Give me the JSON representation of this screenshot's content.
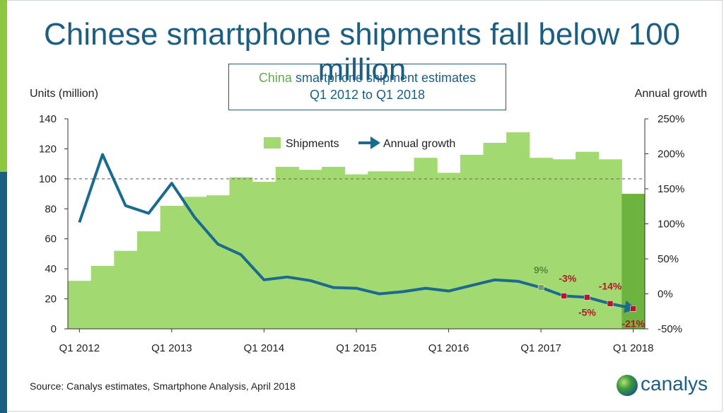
{
  "title": "Chinese smartphone shipments fall below 100 million",
  "subtitle": {
    "highlight": "China",
    "line1_rest": "smartphone shipment estimates",
    "line2": "Q1 2012 to Q1 2018"
  },
  "source": "Source: Canalys estimates, Smartphone Analysis, April 2018",
  "logo": {
    "text": "canalys",
    "icon": "canalys-globe-icon"
  },
  "colors": {
    "bar": "#a3d971",
    "bar_last": "#6db33f",
    "line": "#1b6a8f",
    "negative_label": "#b2182b",
    "positive_label": "#5a8a3a",
    "title": "#1b5e82"
  },
  "chart_data": {
    "type": "bar",
    "categories": [
      "Q1 2012",
      "Q2 2012",
      "Q3 2012",
      "Q4 2012",
      "Q1 2013",
      "Q2 2013",
      "Q3 2013",
      "Q4 2013",
      "Q1 2014",
      "Q2 2014",
      "Q3 2014",
      "Q4 2014",
      "Q1 2015",
      "Q2 2015",
      "Q3 2015",
      "Q4 2015",
      "Q1 2016",
      "Q2 2016",
      "Q3 2016",
      "Q4 2016",
      "Q1 2017",
      "Q2 2017",
      "Q3 2017",
      "Q4 2017",
      "Q1 2018"
    ],
    "x_tick_labels": [
      "Q1 2012",
      "Q1 2013",
      "Q1 2014",
      "Q1 2015",
      "Q1 2016",
      "Q1 2017",
      "Q1 2018"
    ],
    "series": [
      {
        "name": "Shipments",
        "type": "bar",
        "axis": "left",
        "values": [
          32,
          42,
          52,
          65,
          82,
          88,
          89,
          101,
          98,
          108,
          106,
          108,
          103,
          105,
          105,
          114,
          104,
          116,
          124,
          131,
          114,
          113,
          118,
          113,
          90
        ]
      },
      {
        "name": "Annual growth",
        "type": "line",
        "axis": "right",
        "values": [
          102,
          199,
          126,
          115,
          158,
          109,
          71,
          56,
          20,
          24,
          19,
          9,
          8,
          0,
          3,
          8,
          4,
          12,
          20,
          18,
          9,
          -3,
          -5,
          -14,
          -21
        ]
      }
    ],
    "point_labels": [
      {
        "index": 20,
        "text": "9%",
        "sign": "positive"
      },
      {
        "index": 21,
        "text": "-3%",
        "sign": "negative"
      },
      {
        "index": 22,
        "text": "-5%",
        "sign": "negative"
      },
      {
        "index": 23,
        "text": "-14%",
        "sign": "negative"
      },
      {
        "index": 24,
        "text": "-21%",
        "sign": "negative"
      }
    ],
    "ylabel_left": "Units (million)",
    "ylabel_right": "Annual growth",
    "ylim_left": [
      0,
      140
    ],
    "yticks_left": [
      "0",
      "20",
      "40",
      "60",
      "80",
      "100",
      "120",
      "140"
    ],
    "ylim_right": [
      -50,
      250
    ],
    "yticks_right": [
      "-50%",
      "0%",
      "50%",
      "100%",
      "150%",
      "200%",
      "250%"
    ],
    "reference_line": {
      "value": 100,
      "axis": "left",
      "style": "dashed"
    },
    "legend": {
      "position": "top-center",
      "items": [
        "Shipments",
        "Annual growth"
      ]
    }
  }
}
